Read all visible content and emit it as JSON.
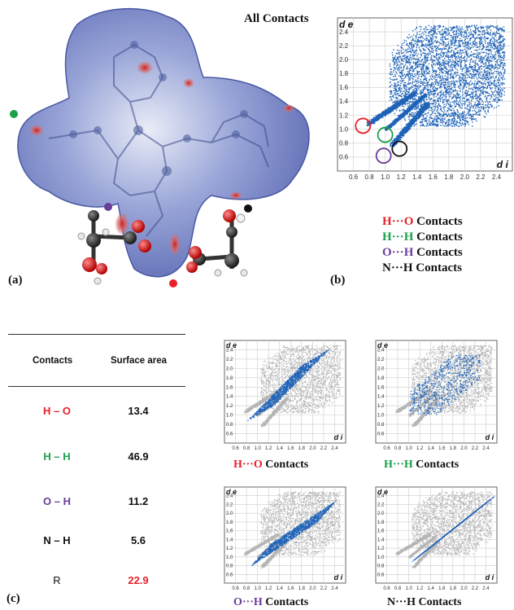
{
  "panels": {
    "a_label": "(a)",
    "b_label": "(b)",
    "c_label": "(c)"
  },
  "fingerprint_main": {
    "title": "All Contacts",
    "axis_y_label": "d e",
    "axis_x_label": "d i",
    "x_ticks": [
      "0.6",
      "0.8",
      "1.0",
      "1.2",
      "1.4",
      "1.6",
      "1.8",
      "2.0",
      "2.2",
      "2.4"
    ],
    "y_ticks": [
      "2.4",
      "2.2",
      "2.0",
      "1.8",
      "1.6",
      "1.4",
      "1.2",
      "1.0",
      "0.8",
      "0.6"
    ]
  },
  "legend": [
    {
      "a": "H",
      "dots": "···",
      "b": "O",
      "rest": " Contacts",
      "color_a": "#e8202a",
      "color_b": "#e8202a"
    },
    {
      "a": "H",
      "dots": "···",
      "b": "H",
      "rest": " Contacts",
      "color_a": "#1aa04b",
      "color_b": "#1aa04b"
    },
    {
      "a": "O",
      "dots": "···",
      "b": "H",
      "rest": " Contacts",
      "color_a": "#6a3d9a",
      "color_b": "#6a3d9a"
    },
    {
      "a": "N",
      "dots": "···",
      "b": "H",
      "rest": " Contacts",
      "color_a": "#111111",
      "color_b": "#111111"
    }
  ],
  "table": {
    "headers": [
      "Contacts",
      "Surface area"
    ],
    "rows": [
      {
        "contact": "H – O",
        "area": "13.4",
        "contact_color": "#e8202a",
        "area_color": "#111111"
      },
      {
        "contact": "H – H",
        "area": "46.9",
        "contact_color": "#1aa04b",
        "area_color": "#111111"
      },
      {
        "contact": "O – H",
        "area": "11.2",
        "contact_color": "#6a3d9a",
        "area_color": "#111111"
      },
      {
        "contact": "N – H",
        "area": "5.6",
        "contact_color": "#111111",
        "area_color": "#111111"
      },
      {
        "contact": "R",
        "area": "22.9",
        "contact_color": "#111111",
        "area_color": "#e8202a"
      }
    ]
  },
  "small_plots": [
    {
      "caption_a": "H",
      "caption_b": "O",
      "caption_rest": " Contacts",
      "color": "#e8202a"
    },
    {
      "caption_a": "H",
      "caption_b": "H",
      "caption_rest": " Contacts",
      "color": "#1aa04b"
    },
    {
      "caption_a": "O",
      "caption_b": "H",
      "caption_rest": " Contacts",
      "color": "#6a3d9a"
    },
    {
      "caption_a": "N",
      "caption_b": "H",
      "caption_rest": " Contacts",
      "color": "#111111"
    }
  ],
  "small_axis": {
    "y_label": "d e",
    "x_label": "d i",
    "x_ticks": [
      "0.6",
      "0.8",
      "1.0",
      "1.2",
      "1.4",
      "1.6",
      "1.8",
      "2.0",
      "2.2",
      "2.4"
    ],
    "y_ticks": [
      "2.4",
      "2.2",
      "2.0",
      "1.8",
      "1.6",
      "1.4",
      "1.2",
      "1.0",
      "0.8",
      "0.6"
    ]
  },
  "colors": {
    "surface_blue": "#6f7fc4",
    "fingerprint_blue": "#1f63b8",
    "fingerprint_grey": "#b5b5b5",
    "hot_red": "#c93a3a"
  }
}
